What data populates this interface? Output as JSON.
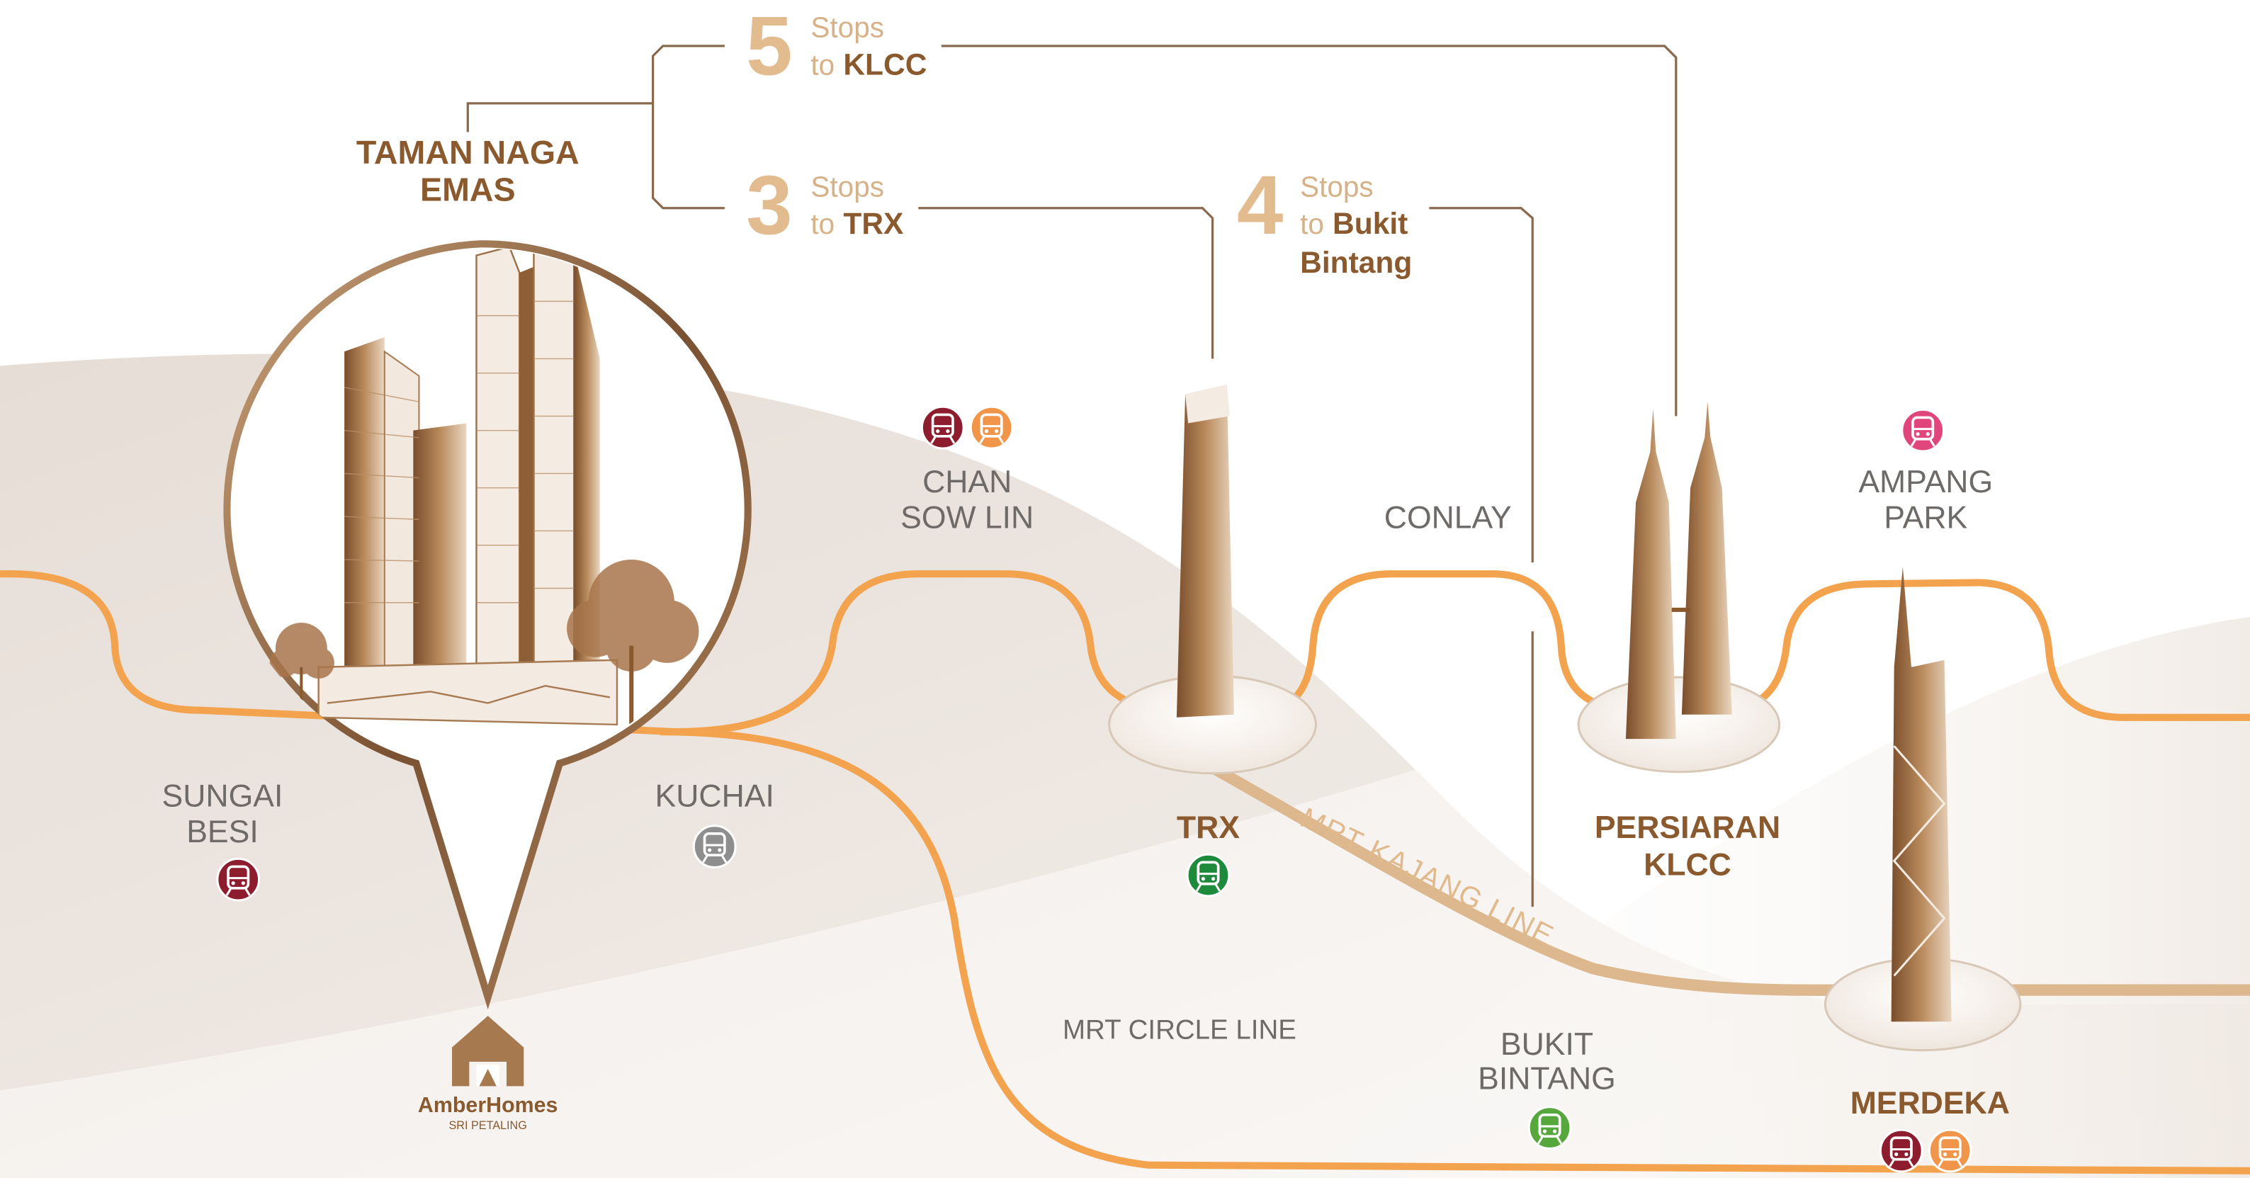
{
  "development": {
    "name_lines": [
      "TAMAN NAGA",
      "EMAS"
    ]
  },
  "brand": {
    "name": "AmberHomes",
    "location": "SRI PETALING"
  },
  "journeys": [
    {
      "count": "5",
      "unit": "Stops",
      "to": "to",
      "destination_lines": [
        "KLCC"
      ]
    },
    {
      "count": "3",
      "unit": "Stops",
      "to": "to",
      "destination_lines": [
        "TRX"
      ]
    },
    {
      "count": "4",
      "unit": "Stops",
      "to": "to",
      "destination_lines": [
        "Bukit",
        "Bintang"
      ]
    }
  ],
  "stations": [
    {
      "name_lines": [
        "SUNGAI",
        "BESI"
      ],
      "icons": [
        "#8c1c2e"
      ]
    },
    {
      "name_lines": [
        "KUCHAI"
      ],
      "icons": [
        "#8e8e8e"
      ]
    },
    {
      "name_lines": [
        "CHAN",
        "SOW LIN"
      ],
      "icons": [
        "#8c1c2e",
        "#f0954a"
      ]
    },
    {
      "name_lines": [
        "TRX"
      ],
      "icons": [
        "#1e8a3c"
      ]
    },
    {
      "name_lines": [
        "CONLAY"
      ],
      "icons": []
    },
    {
      "name_lines": [
        "PERSIARAN",
        "KLCC"
      ],
      "icons": []
    },
    {
      "name_lines": [
        "AMPANG",
        "PARK"
      ],
      "icons": [
        "#e0457b"
      ]
    },
    {
      "name_lines": [
        "BUKIT",
        "BINTANG"
      ],
      "icons": [
        "#57a83c"
      ]
    },
    {
      "name_lines": [
        "MERDEKA"
      ],
      "icons": [
        "#8c1c2e",
        "#f0954a"
      ]
    }
  ],
  "lines": [
    {
      "name": "MRT KAJANG LINE"
    },
    {
      "name": "MRT CIRCLE LINE"
    }
  ]
}
